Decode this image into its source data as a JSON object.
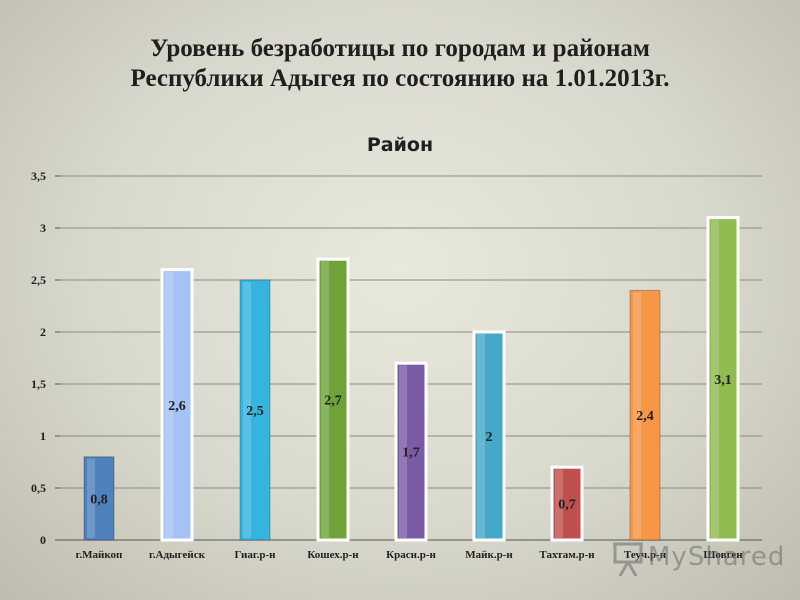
{
  "slide": {
    "title_line1": "Уровень безработицы по городам и районам",
    "title_line2": "Республики Адыгея по состоянию на 1.01.2013г."
  },
  "chart_data": {
    "type": "bar",
    "title": "Район",
    "categories": [
      "г.Майкоп",
      "г.Адыгейск",
      "Гиаг.р-н",
      "Кошех.р-н",
      "Красн.р-н",
      "Майк.р-н",
      "Тахтам.р-н",
      "Теуч.р-н",
      "Шовген"
    ],
    "values": [
      0.8,
      2.6,
      2.5,
      2.7,
      1.7,
      2,
      0.7,
      2.4,
      3.1
    ],
    "value_labels": [
      "0,8",
      "2,6",
      "2,5",
      "2,7",
      "1,7",
      "2",
      "0,7",
      "2,4",
      "3,1"
    ],
    "ylim": [
      0,
      3.5
    ],
    "yticks": [
      0,
      0.5,
      1,
      1.5,
      2,
      2.5,
      3,
      3.5
    ],
    "ytick_labels": [
      "0",
      "0,5",
      "1",
      "1,5",
      "2",
      "2,5",
      "3",
      "3,5"
    ],
    "grid": true,
    "legend": "none",
    "colors": [
      "#4f81bd",
      "#a4c2f4",
      "#36b4e0",
      "#6fa33a",
      "#7a5ba5",
      "#45a8c8",
      "#c0504d",
      "#f79646",
      "#8fbb4f"
    ]
  },
  "watermark": {
    "text": "MyShared",
    "icon": "presentation-board-icon"
  }
}
